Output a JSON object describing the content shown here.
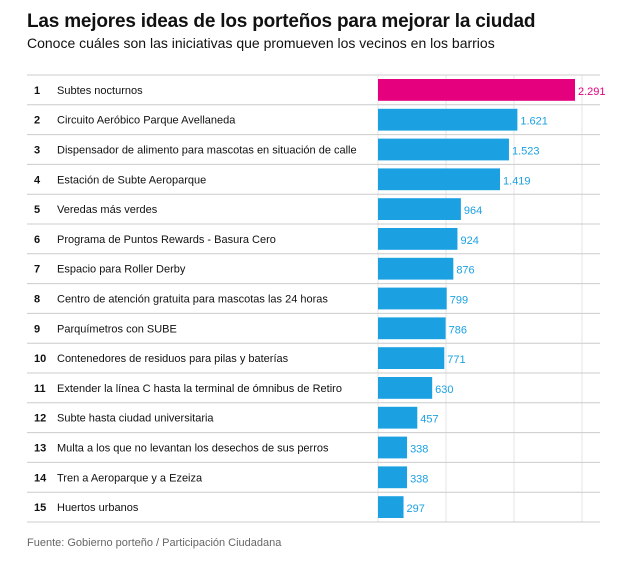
{
  "title": "Las mejores ideas de los porteños para mejorar la ciudad",
  "subtitle": "Conoce cuáles son las iniciativas que promueven los vecinos en los barrios",
  "source": "Fuente: Gobierno porteño / Participación Ciudadana",
  "colors": {
    "highlight": "#e5007e",
    "bar": "#1ba1e2",
    "highlight_text": "#e5007e",
    "value_text": "#1ba1e2",
    "grid": "#e6e6e6",
    "row_sep": "#cccccc"
  },
  "chart_data": {
    "type": "bar",
    "orientation": "horizontal",
    "title": "Las mejores ideas de los porteños para mejorar la ciudad",
    "xlabel": "",
    "ylabel": "",
    "xlim": [
      0,
      2300
    ],
    "ranks": [
      "1",
      "2",
      "3",
      "4",
      "5",
      "6",
      "7",
      "8",
      "9",
      "10",
      "11",
      "12",
      "13",
      "14",
      "15"
    ],
    "categories": [
      "Subtes nocturnos",
      "Circuito Aeróbico Parque Avellaneda",
      "Dispensador de alimento para mascotas en situación de calle",
      "Estación de Subte Aeroparque",
      "Veredas más verdes",
      "Programa de Puntos Rewards - Basura Cero",
      "Espacio para Roller Derby",
      "Centro de atención gratuita para mascotas las 24 horas",
      "Parquímetros con SUBE",
      "Contenedores de residuos para pilas y baterías",
      "Extender la línea C hasta la terminal de ómnibus de Retiro",
      "Subte hasta ciudad universitaria",
      "Multa a los que no levantan los desechos de sus perros",
      "Tren a Aeroparque y a Ezeiza",
      "Huertos urbanos"
    ],
    "values": [
      2291,
      1621,
      1523,
      1419,
      964,
      924,
      876,
      799,
      786,
      771,
      630,
      457,
      338,
      338,
      297
    ],
    "value_labels": [
      "2.291",
      "1.621",
      "1.523",
      "1.419",
      "964",
      "924",
      "876",
      "799",
      "786",
      "771",
      "630",
      "457",
      "338",
      "338",
      "297"
    ],
    "highlight_index": 0
  }
}
